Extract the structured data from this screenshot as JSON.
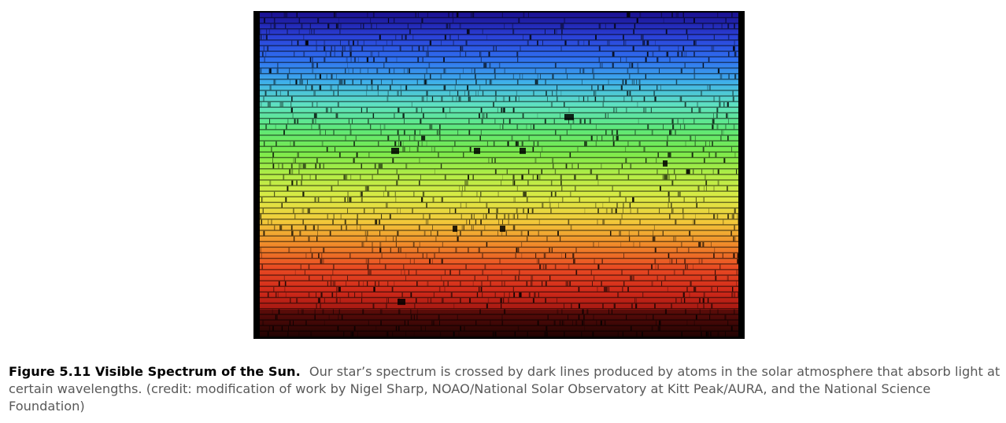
{
  "figure": {
    "image": {
      "alt": "",
      "colors": {
        "background": "#000000",
        "bands": [
          "#1a0f8f",
          "#2a3fd6",
          "#2f6ff0",
          "#3fb0ea",
          "#5fe2c0",
          "#5ee87a",
          "#79ea4c",
          "#b3ec46",
          "#dcea45",
          "#f2c93a",
          "#f08a2a",
          "#e84a22",
          "#d02a1a",
          "#9a1410",
          "#3a0605"
        ]
      }
    },
    "caption": {
      "label": "Figure 5.11 Visible Spectrum of the Sun.",
      "text": "Our star’s spectrum is crossed by dark lines produced by atoms in the solar atmosphere that absorb light at certain wavelengths. (credit: modification of work by Nigel Sharp, NOAO/National Solar Observatory at Kitt Peak/AURA, and the National Science Foundation)"
    }
  }
}
